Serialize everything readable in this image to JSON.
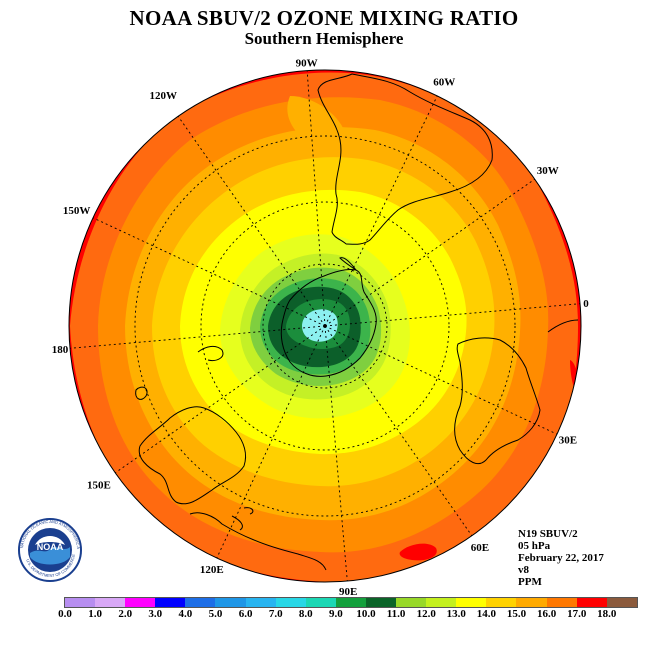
{
  "header": {
    "title": "NOAA SBUV/2 OZONE MIXING RATIO",
    "subtitle": "Southern Hemisphere"
  },
  "map": {
    "projection": "south polar stereographic",
    "longitude_labels": [
      "90W",
      "60W",
      "30W",
      "0",
      "30E",
      "60E",
      "90E",
      "120E",
      "150E",
      "180",
      "150W",
      "120W"
    ],
    "color_zones": [
      "#8cf0f0",
      "#1b8d3c",
      "#0c5f2a",
      "#3cb44b",
      "#7fcf3f",
      "#c4f026",
      "#f0ff1a",
      "#ffff00",
      "#ffd000",
      "#ffb000",
      "#ff8c00",
      "#ff6a10",
      "#ff0000"
    ],
    "coastline_color": "#000000",
    "graticule_color": "#000000"
  },
  "info": {
    "lines": [
      "N19 SBUV/2",
      "05 hPa",
      "February 22, 2017",
      "v8",
      "PPM"
    ]
  },
  "logo": {
    "text": "NOAA",
    "ring_text": "NATIONAL OCEANIC AND ATMOSPHERIC ADMINISTRATION",
    "bottom_text": "U.S. DEPARTMENT OF COMMERCE"
  },
  "colorbar": {
    "ticks": [
      "0.0",
      "1.0",
      "2.0",
      "3.0",
      "4.0",
      "5.0",
      "6.0",
      "7.0",
      "8.0",
      "9.0",
      "10.0",
      "11.0",
      "12.0",
      "13.0",
      "14.0",
      "15.0",
      "16.0",
      "17.0",
      "18.0"
    ],
    "colors": [
      "#b78ef0",
      "#d8a8f6",
      "#ff00ff",
      "#0000ff",
      "#1e6ee6",
      "#1f96e6",
      "#28b4f0",
      "#28d7e6",
      "#1bd7b4",
      "#13a03c",
      "#0a6428",
      "#98d828",
      "#c4f01e",
      "#ffff00",
      "#ffd200",
      "#ffaa00",
      "#ff7800",
      "#ff0000",
      "#8b5a3c"
    ]
  }
}
